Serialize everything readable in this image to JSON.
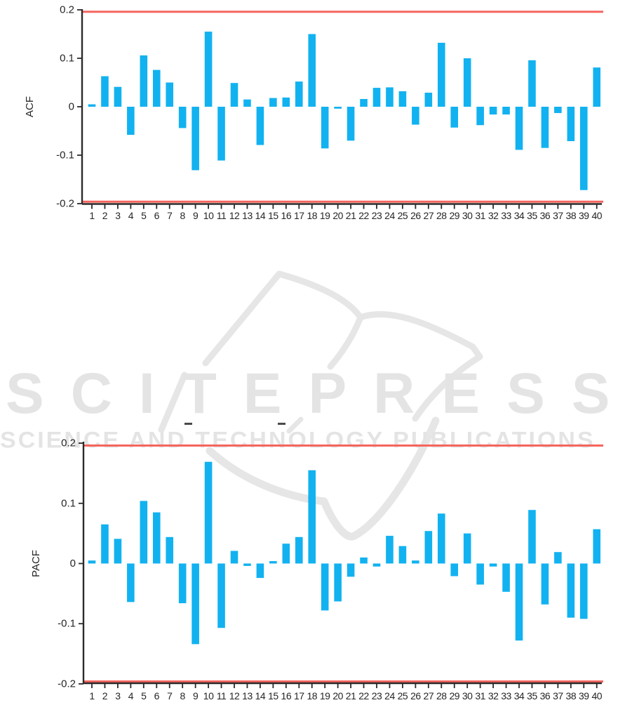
{
  "page": {
    "background": "#ffffff"
  },
  "watermark": {
    "line1": "SCITEPRESS",
    "line2": "SCIENCE AND TECHNOLOGY PUBLICATIONS",
    "text_color": "#e4e4e4",
    "logo_stroke_color": "#e6e6e6"
  },
  "colors": {
    "bar": "#12b2f0",
    "significance_line": "#f5655e",
    "axis": "#2b2b2b",
    "tick_label": "#262626"
  },
  "chart_data": [
    {
      "type": "bar",
      "name": "ACF correlogram",
      "title": "",
      "xlabel": "",
      "ylabel": "ACF",
      "categories": [
        1,
        2,
        3,
        4,
        5,
        6,
        7,
        8,
        9,
        10,
        11,
        12,
        13,
        14,
        15,
        16,
        17,
        18,
        19,
        20,
        21,
        22,
        23,
        24,
        25,
        26,
        27,
        28,
        29,
        30,
        31,
        32,
        33,
        34,
        35,
        36,
        37,
        38,
        39,
        40
      ],
      "values": [
        0.005,
        0.063,
        0.041,
        -0.058,
        0.106,
        0.076,
        0.05,
        -0.044,
        -0.131,
        0.155,
        -0.111,
        0.049,
        0.015,
        -0.079,
        0.018,
        0.019,
        0.052,
        0.15,
        -0.086,
        -0.004,
        -0.07,
        0.016,
        0.039,
        0.04,
        0.032,
        -0.037,
        0.029,
        0.132,
        -0.043,
        0.1,
        -0.038,
        -0.016,
        -0.016,
        -0.089,
        0.096,
        -0.085,
        -0.013,
        -0.071,
        -0.172,
        0.081
      ],
      "ylim": [
        -0.2,
        0.2
      ],
      "yticks": [
        0.2,
        0.1,
        0,
        -0.1,
        -0.2
      ],
      "ytick_labels": [
        "0.2",
        "0.1",
        "0",
        "-0.1",
        "-0.2"
      ],
      "significance_bounds": [
        0.196,
        -0.196
      ],
      "grid": false,
      "legend": null
    },
    {
      "type": "bar",
      "name": "PACF correlogram",
      "title": "",
      "xlabel": "",
      "ylabel": "PACF",
      "categories": [
        1,
        2,
        3,
        4,
        5,
        6,
        7,
        8,
        9,
        10,
        11,
        12,
        13,
        14,
        15,
        16,
        17,
        18,
        19,
        20,
        21,
        22,
        23,
        24,
        25,
        26,
        27,
        28,
        29,
        30,
        31,
        32,
        33,
        34,
        35,
        36,
        37,
        38,
        39,
        40
      ],
      "values": [
        0.005,
        0.065,
        0.041,
        -0.064,
        0.104,
        0.085,
        0.044,
        -0.066,
        -0.134,
        0.169,
        -0.107,
        0.021,
        -0.004,
        -0.024,
        0.004,
        0.033,
        0.044,
        0.155,
        -0.078,
        -0.063,
        -0.022,
        0.01,
        -0.005,
        0.046,
        0.029,
        0.005,
        0.054,
        0.083,
        -0.021,
        0.05,
        -0.035,
        -0.005,
        -0.047,
        -0.128,
        0.089,
        -0.068,
        0.019,
        -0.09,
        -0.092,
        0.057
      ],
      "ylim": [
        -0.2,
        0.2
      ],
      "yticks": [
        0.2,
        0.1,
        0,
        -0.1,
        -0.2
      ],
      "ytick_labels": [
        "0.2",
        "0.1",
        "0",
        "-0.1",
        "-0.2"
      ],
      "significance_bounds": [
        0.196,
        -0.196
      ],
      "grid": false,
      "legend": null
    }
  ]
}
